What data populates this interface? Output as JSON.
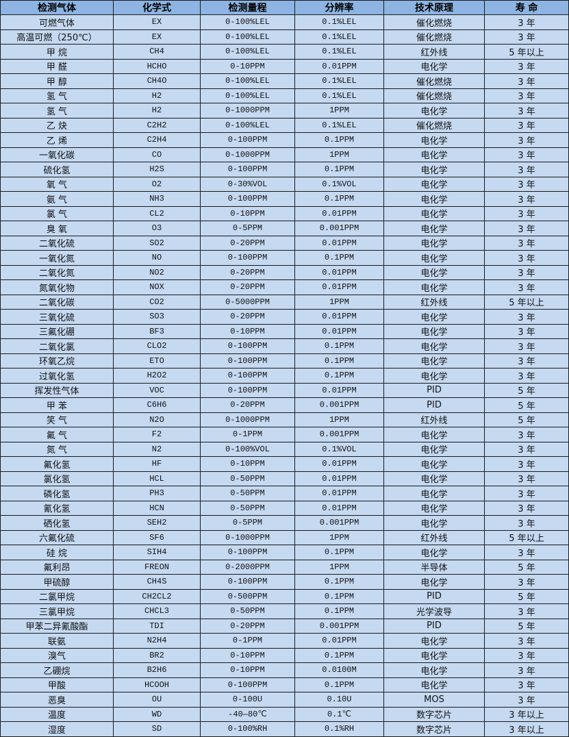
{
  "colors": {
    "header_bg": "#8db4e2",
    "row_bg": "#c5d9f1",
    "border": "#1a1a1a"
  },
  "table": {
    "headers": [
      "检测气体",
      "化学式",
      "检测量程",
      "分辨率",
      "技术原理",
      "寿 命"
    ],
    "rows": [
      [
        "可燃气体",
        "EX",
        "0-100%LEL",
        "0.1%LEL",
        "催化燃烧",
        "3 年"
      ],
      [
        "高温可燃（250℃）",
        "EX",
        "0-100%LEL",
        "0.1%LEL",
        "催化燃烧",
        "3 年"
      ],
      [
        "甲 烷",
        "CH4",
        "0-100%LEL",
        "0.1%LEL",
        "红外线",
        "5 年以上"
      ],
      [
        "甲 醛",
        "HCHO",
        "0-10PPM",
        "0.01PPM",
        "电化学",
        "3 年"
      ],
      [
        "甲 醇",
        "CH4O",
        "0-100%LEL",
        "0.1%LEL",
        "催化燃烧",
        "3 年"
      ],
      [
        "氢 气",
        "H2",
        "0-100%LEL",
        "0.1%LEL",
        "催化燃烧",
        "3 年"
      ],
      [
        "氢 气",
        "H2",
        "0-1000PPM",
        "1PPM",
        "电化学",
        "3 年"
      ],
      [
        "乙 炔",
        "C2H2",
        "0-100%LEL",
        "0.1%LEL",
        "催化燃烧",
        "3 年"
      ],
      [
        "乙 烯",
        "C2H4",
        "0-100PPM",
        "0.1PPM",
        "电化学",
        "3 年"
      ],
      [
        "一氧化碳",
        "CO",
        "0-1000PPM",
        "1PPM",
        "电化学",
        "3 年"
      ],
      [
        "硫化氢",
        "H2S",
        "0-100PPM",
        "0.1PPM",
        "电化学",
        "3 年"
      ],
      [
        "氧 气",
        "O2",
        "0-30%VOL",
        "0.1%VOL",
        "电化学",
        "3 年"
      ],
      [
        "氨 气",
        "NH3",
        "0-100PPM",
        "0.1PPM",
        "电化学",
        "3 年"
      ],
      [
        "氯 气",
        "CL2",
        "0-10PPM",
        "0.01PPM",
        "电化学",
        "3 年"
      ],
      [
        "臭 氧",
        "O3",
        "0-5PPM",
        "0.001PPM",
        "电化学",
        "3 年"
      ],
      [
        "二氧化硫",
        "SO2",
        "0-20PPM",
        "0.01PPM",
        "电化学",
        "3 年"
      ],
      [
        "一氧化氮",
        "NO",
        "0-100PPM",
        "0.1PPM",
        "电化学",
        "3 年"
      ],
      [
        "二氧化氮",
        "NO2",
        "0-20PPM",
        "0.01PPM",
        "电化学",
        "3 年"
      ],
      [
        "氮氧化物",
        "NOX",
        "0-20PPM",
        "0.01PPM",
        "电化学",
        "3 年"
      ],
      [
        "二氧化碳",
        "CO2",
        "0-5000PPM",
        "1PPM",
        "红外线",
        "5 年以上"
      ],
      [
        "三氧化硫",
        "SO3",
        "0-20PPM",
        "0.01PPM",
        "电化学",
        "3 年"
      ],
      [
        "三氟化硼",
        "BF3",
        "0-10PPM",
        "0.01PPM",
        "电化学",
        "3 年"
      ],
      [
        "二氧化氯",
        "CLO2",
        "0-100PPM",
        "0.1PPM",
        "电化学",
        "3 年"
      ],
      [
        "环氧乙烷",
        "ETO",
        "0-100PPM",
        "0.1PPM",
        "电化学",
        "3 年"
      ],
      [
        "过氧化氢",
        "H2O2",
        "0-100PPM",
        "0.1PPM",
        "电化学",
        "3 年"
      ],
      [
        "挥发性气体",
        "VOC",
        "0-100PPM",
        "0.01PPM",
        "PID",
        "5 年"
      ],
      [
        "甲 苯",
        "C6H6",
        "0-20PPM",
        "0.001PPM",
        "PID",
        "5 年"
      ],
      [
        "笑 气",
        "N2O",
        "0-1000PPM",
        "1PPM",
        "红外线",
        "5 年"
      ],
      [
        "氟 气",
        "F2",
        "0-1PPM",
        "0.001PPM",
        "电化学",
        "3 年"
      ],
      [
        "氮 气",
        "N2",
        "0-100%VOL",
        "0.1%VOL",
        "电化学",
        "3 年"
      ],
      [
        "氟化氢",
        "HF",
        "0-10PPM",
        "0.01PPM",
        "电化学",
        "3 年"
      ],
      [
        "氯化氢",
        "HCL",
        "0-50PPM",
        "0.01PPM",
        "电化学",
        "3 年"
      ],
      [
        "磷化氢",
        "PH3",
        "0-50PPM",
        "0.01PPM",
        "电化学",
        "3 年"
      ],
      [
        "氰化氢",
        "HCN",
        "0-50PPM",
        "0.01PPM",
        "电化学",
        "3 年"
      ],
      [
        "硒化氢",
        "SEH2",
        "0-5PPM",
        "0.001PPM",
        "电化学",
        "3 年"
      ],
      [
        "六氟化硫",
        "SF6",
        "0-1000PPM",
        "1PPM",
        "红外线",
        "5 年以上"
      ],
      [
        "硅 烷",
        "SIH4",
        "0-100PPM",
        "0.1PPM",
        "电化学",
        "3 年"
      ],
      [
        "氟利昂",
        "FREON",
        "0-2000PPM",
        "1PPM",
        "半导体",
        "5 年"
      ],
      [
        "甲硫醇",
        "CH4S",
        "0-100PPM",
        "0.1PPM",
        "电化学",
        "3 年"
      ],
      [
        "二氯甲烷",
        "CH2CL2",
        "0-500PPM",
        "0.1PPM",
        "PID",
        "5 年"
      ],
      [
        "三氯甲烷",
        "CHCL3",
        "0-50PPM",
        "0.1PPM",
        "光学波导",
        "3 年"
      ],
      [
        "甲苯二异氰酸酯",
        "TDI",
        "0-20PPM",
        "0.001PPM",
        "PID",
        "5 年"
      ],
      [
        "联氨",
        "N2H4",
        "0-1PPM",
        "0.01PPM",
        "电化学",
        "3 年"
      ],
      [
        "溴气",
        "BR2",
        "0-10PPM",
        "0.1PPM",
        "电化学",
        "3 年"
      ],
      [
        "乙硼烷",
        "B2H6",
        "0-10PPM",
        "0.0100M",
        "电化学",
        "3 年"
      ],
      [
        "甲酸",
        "HCOOH",
        "0-100PPM",
        "0.1PPM",
        "电化学",
        "3 年"
      ],
      [
        "恶臭",
        "OU",
        "0-100U",
        "0.10U",
        "MOS",
        "3 年"
      ],
      [
        "温度",
        "WD",
        "-40—80℃",
        "0.1℃",
        "数字芯片",
        "3 年以上"
      ],
      [
        "湿度",
        "SD",
        "0-100%RH",
        "0.1%RH",
        "数字芯片",
        "3 年以上"
      ]
    ]
  }
}
